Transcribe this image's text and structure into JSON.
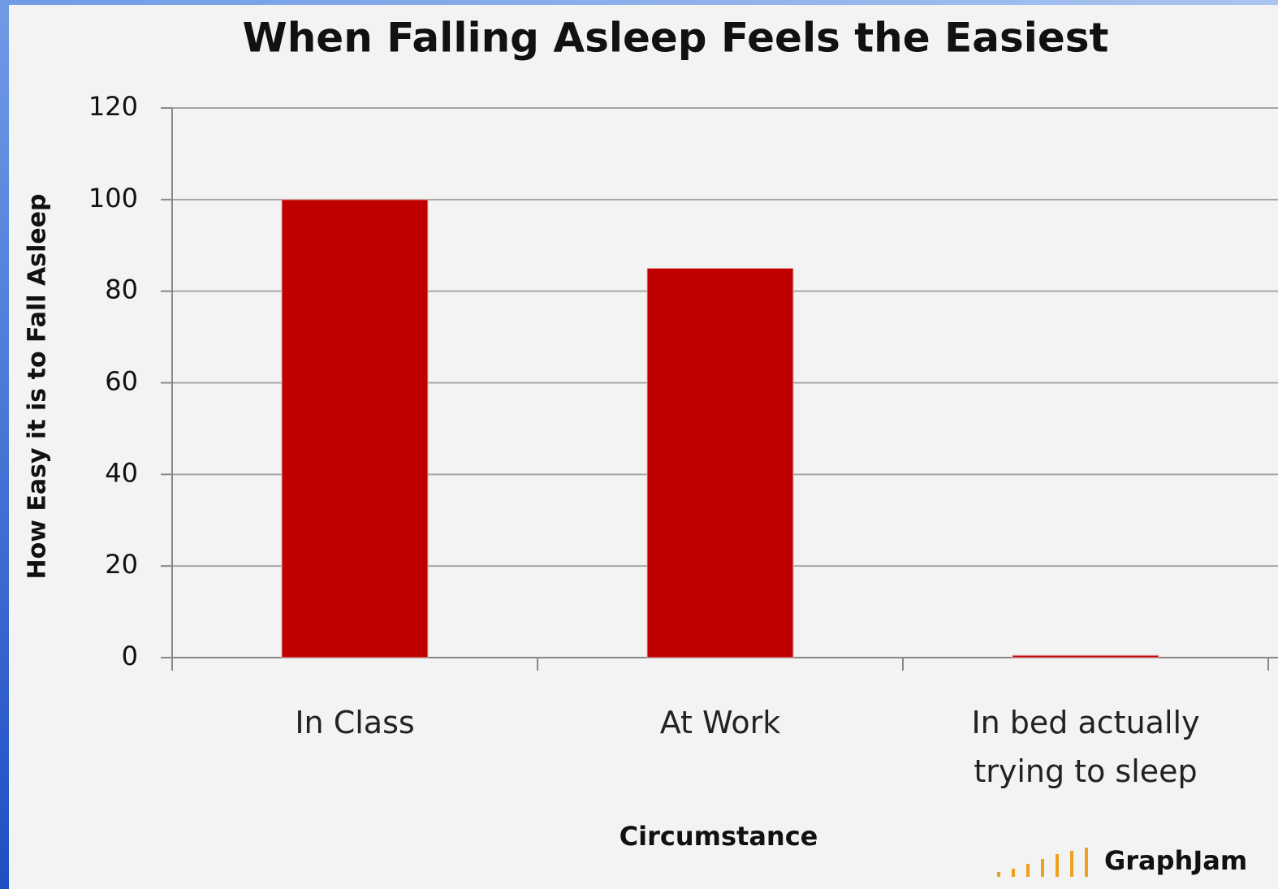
{
  "chart_data": {
    "type": "bar",
    "title": "When Falling Asleep Feels the Easiest",
    "x_label": "Circumstance",
    "y_label": "How Easy it is to Fall Asleep",
    "categories": [
      "In Class",
      "At Work",
      "In bed actually trying to sleep"
    ],
    "values": [
      100,
      85,
      0.5
    ],
    "color": "#c00000",
    "ylim": [
      0,
      120
    ],
    "yticks": [
      0,
      20,
      40,
      60,
      80,
      100,
      120
    ],
    "grid": true,
    "watermark": "GraphJam"
  }
}
